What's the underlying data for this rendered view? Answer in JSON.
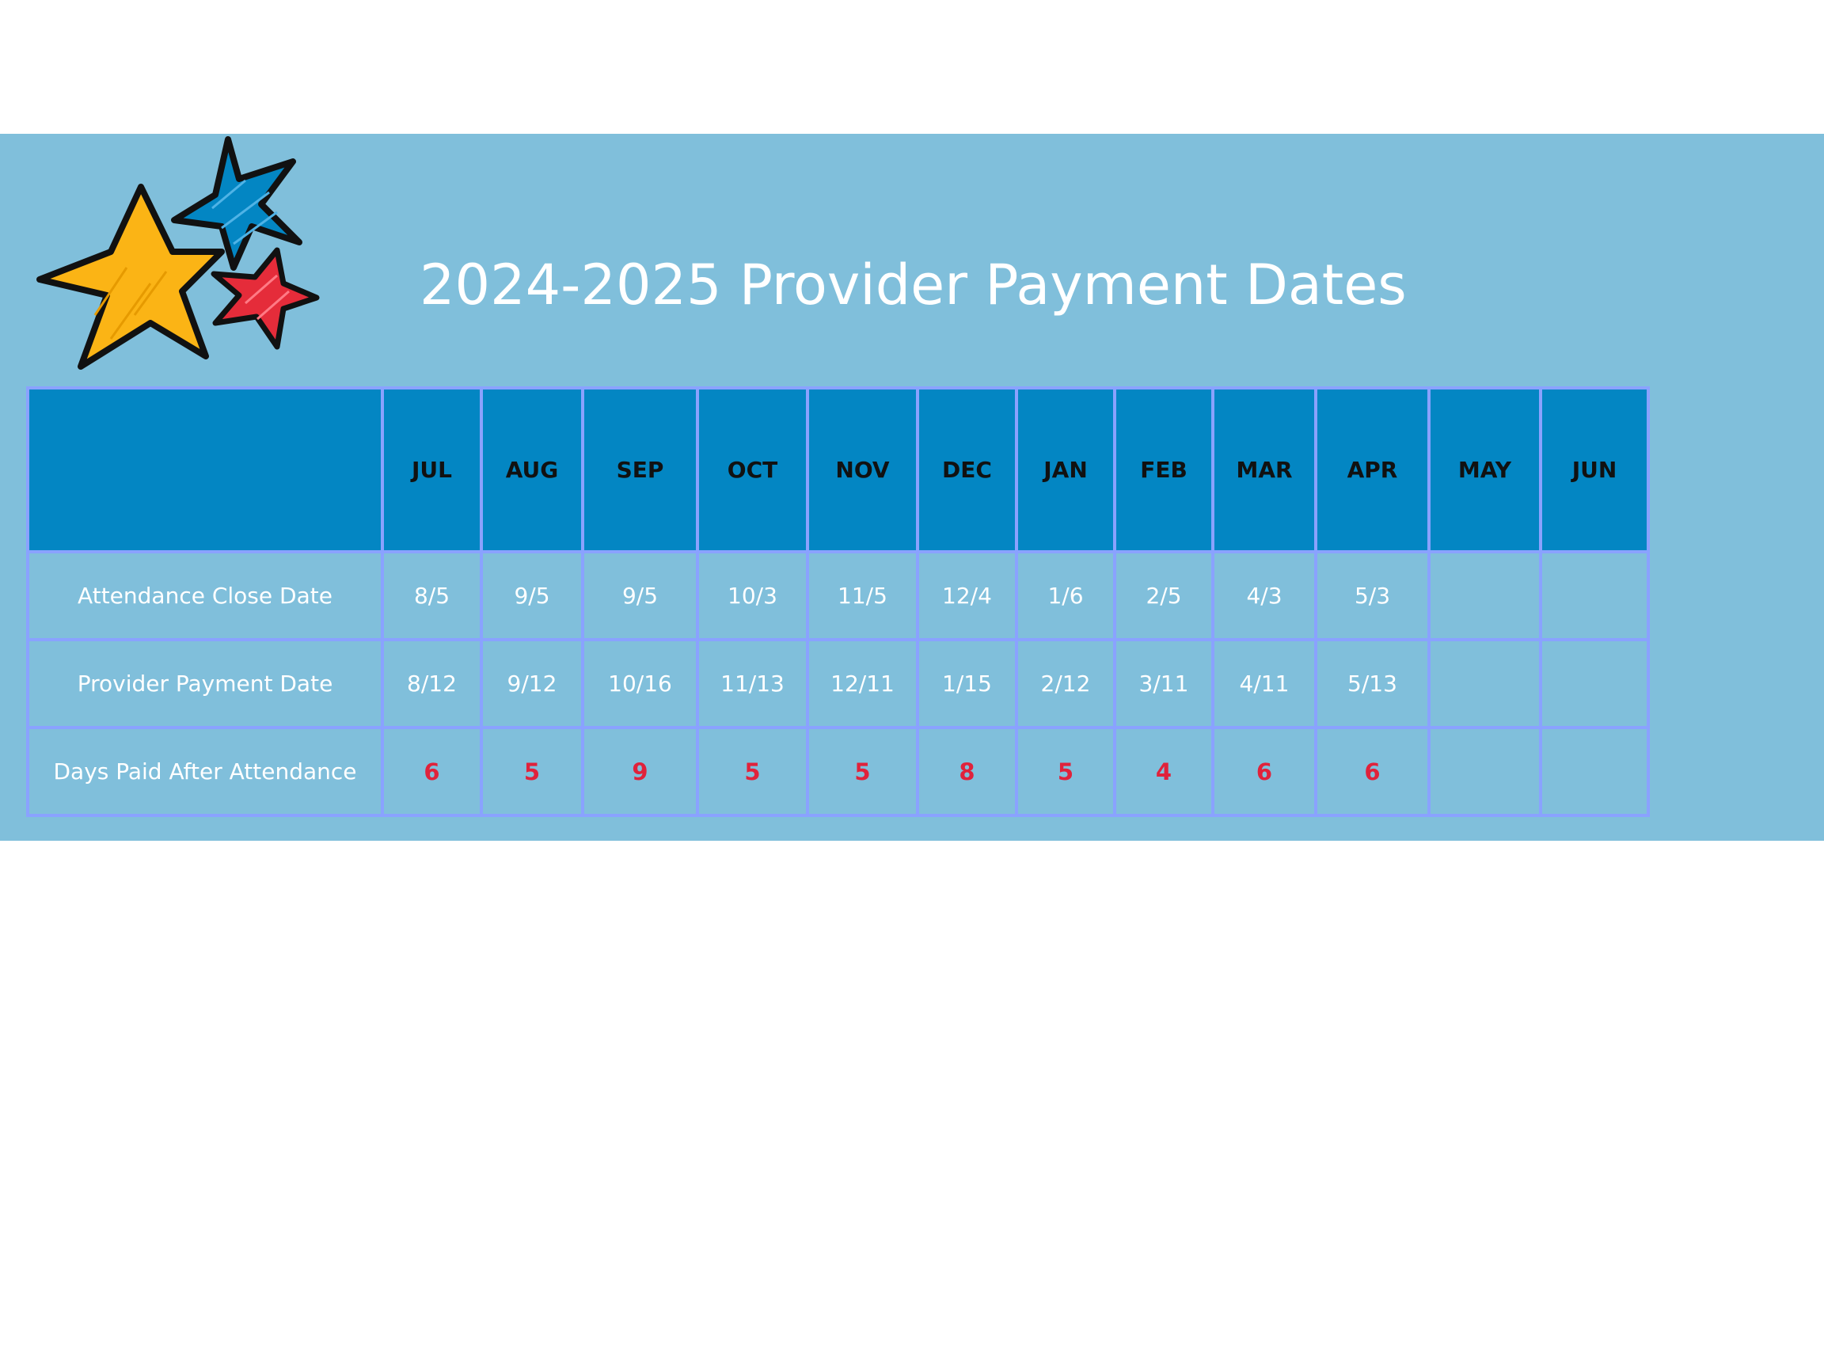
{
  "title": "2024-2025 Provider Payment Dates",
  "colors": {
    "banner": "#80bfdb",
    "header_fill": "#0386c3",
    "grid_border": "#8aa2ff",
    "days_value": "#e0223b"
  },
  "decoration": {
    "icons": [
      "yellow-star-icon",
      "blue-star-icon",
      "red-star-icon"
    ]
  },
  "table": {
    "corner": "",
    "columns": [
      "JUL",
      "AUG",
      "SEP",
      "OCT",
      "NOV",
      "DEC",
      "JAN",
      "FEB",
      "MAR",
      "APR",
      "MAY",
      "JUN"
    ],
    "rows": [
      {
        "label": "Attendance Close Date",
        "values": [
          "8/5",
          "9/5",
          "9/5",
          "10/3",
          "11/5",
          "12/4",
          "1/6",
          "2/5",
          "4/3",
          "5/3",
          "",
          ""
        ]
      },
      {
        "label": "Provider Payment Date",
        "values": [
          "8/12",
          "9/12",
          "10/16",
          "11/13",
          "12/11",
          "1/15",
          "2/12",
          "3/11",
          "4/11",
          "5/13",
          "",
          ""
        ]
      },
      {
        "label": "Days Paid After Attendance",
        "values": [
          "6",
          "5",
          "9",
          "5",
          "5",
          "8",
          "5",
          "4",
          "6",
          "6",
          "",
          ""
        ]
      }
    ]
  }
}
